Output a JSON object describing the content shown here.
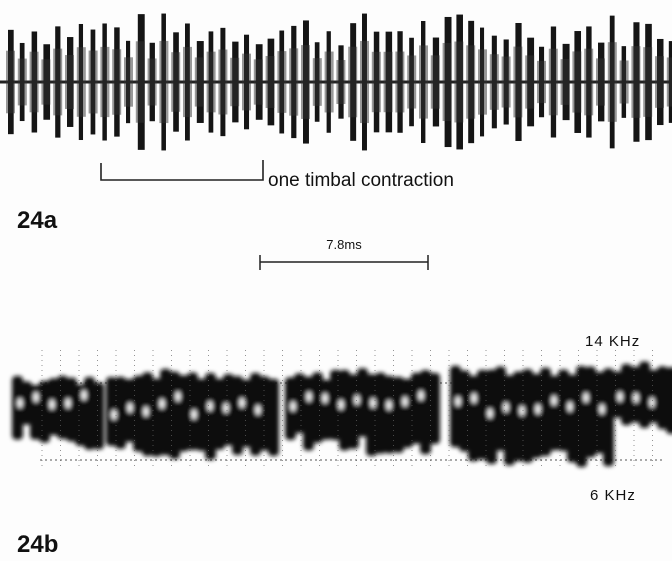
{
  "panel_a": {
    "label": "24a",
    "annotation": "one timbal contraction"
  },
  "scale_bar": {
    "label": "7.8ms"
  },
  "panel_b": {
    "label": "24b",
    "upper_frequency": "14 KHz",
    "lower_frequency": "6 KHz"
  }
}
